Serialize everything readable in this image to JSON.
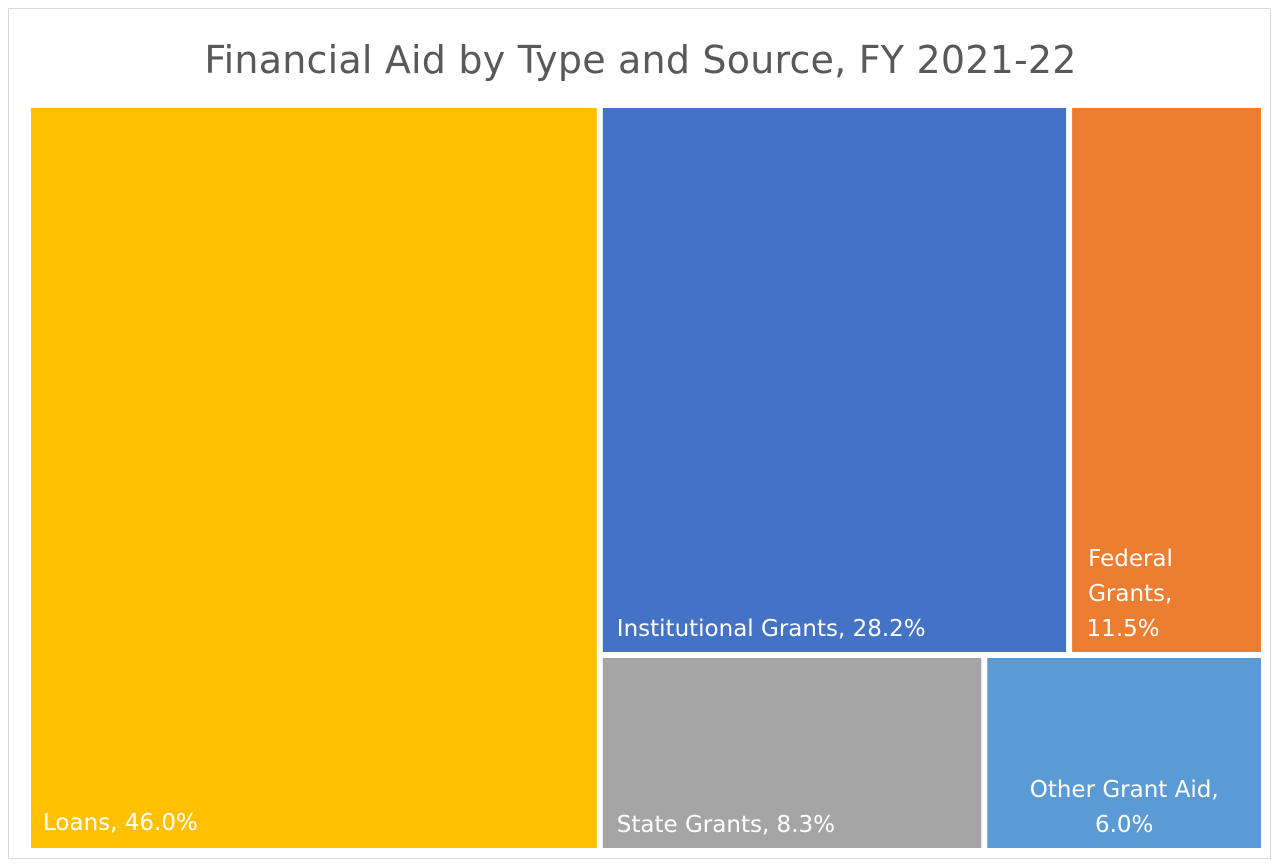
{
  "chart_data": {
    "type": "treemap",
    "title": "Financial Aid by Type and Source, FY 2021-22",
    "items": [
      {
        "name": "Loans",
        "value": 46.0,
        "label": [
          "Loans, 46.0%"
        ],
        "color": "#FFC000"
      },
      {
        "name": "Institutional Grants",
        "value": 28.2,
        "label": [
          "Institutional Grants, 28.2%"
        ],
        "color": "#4472C4"
      },
      {
        "name": "Federal Grants",
        "value": 11.5,
        "label": [
          "Federal",
          "Grants,",
          "11.5%"
        ],
        "color": "#ED7D31"
      },
      {
        "name": "State Grants",
        "value": 8.3,
        "label": [
          "State Grants, 8.3%"
        ],
        "color": "#A5A5A5"
      },
      {
        "name": "Other Grant Aid",
        "value": 6.0,
        "label": [
          "Other Grant Aid,",
          "6.0%"
        ],
        "color": "#5B9BD5"
      }
    ]
  }
}
